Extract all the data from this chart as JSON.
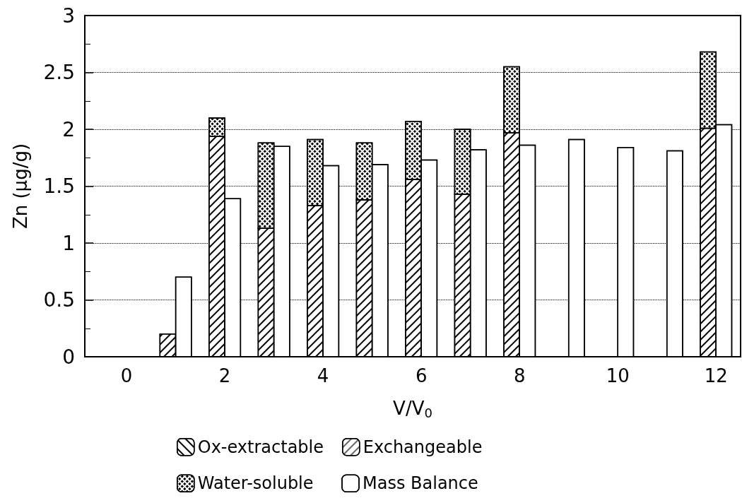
{
  "chart_data": [
    {
      "type": "bar",
      "stacked": true,
      "xlabel": "V/V$_{0}$",
      "ylabel": "Zn (μg/g)",
      "x": [
        0.84,
        1.84,
        2.84,
        3.84,
        4.84,
        5.84,
        6.84,
        7.84,
        8.84,
        9.84,
        10.84,
        11.84
      ],
      "series": [
        {
          "name": "Ox-extractable",
          "color": "#ffffff",
          "values": [
            null,
            null,
            null,
            null,
            null,
            null,
            null,
            null,
            null,
            null,
            null,
            null
          ]
        },
        {
          "name": "Exchangeable",
          "color": "#ffffff",
          "values": [
            0.2,
            1.94,
            1.13,
            1.33,
            1.38,
            1.56,
            1.43,
            1.97,
            null,
            null,
            null,
            2.01
          ]
        },
        {
          "name": "Water-soluble",
          "color": "#ffffff",
          "values": [
            null,
            0.16,
            0.75,
            0.58,
            0.5,
            0.51,
            0.57,
            0.58,
            null,
            null,
            null,
            0.67
          ]
        }
      ],
      "xlim": [
        -0.85,
        12.5
      ],
      "xticks": [
        0,
        2,
        4,
        6,
        8,
        10,
        12
      ],
      "ylim": [
        0,
        3
      ],
      "yticks": [
        0,
        0.5,
        1,
        1.5,
        2,
        2.5,
        3
      ],
      "grid": "y",
      "legend": "bottom"
    },
    {
      "type": "bar",
      "x": [
        1.16,
        2.16,
        3.16,
        4.16,
        5.16,
        6.16,
        7.16,
        8.16,
        9.16,
        10.16,
        11.16,
        12.16
      ],
      "series": [
        {
          "name": "Mass Balance",
          "color": "#ffffff",
          "values": [
            0.7,
            1.39,
            1.85,
            1.68,
            1.69,
            1.73,
            1.82,
            1.86,
            1.91,
            1.84,
            1.81,
            2.04
          ]
        }
      ],
      "xlim": [
        -0.85,
        12.5
      ],
      "ylim": [
        0,
        3
      ],
      "legend": "bottom"
    }
  ]
}
